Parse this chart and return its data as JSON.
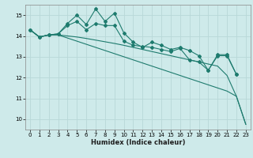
{
  "xlabel": "Humidex (Indice chaleur)",
  "bg_color": "#ceeaea",
  "grid_color": "#b8d8d8",
  "line_color": "#1e7b6e",
  "xlim": [
    -0.5,
    23.5
  ],
  "ylim": [
    9.5,
    15.5
  ],
  "xticks": [
    0,
    1,
    2,
    3,
    4,
    5,
    6,
    7,
    8,
    9,
    10,
    11,
    12,
    13,
    14,
    15,
    16,
    17,
    18,
    19,
    20,
    21,
    22,
    23
  ],
  "yticks": [
    10,
    11,
    12,
    13,
    14,
    15
  ],
  "lines": [
    {
      "x": [
        0,
        1,
        2,
        3,
        4,
        5,
        6,
        7,
        8,
        9,
        10,
        11,
        12,
        13,
        14,
        15,
        16,
        17,
        18,
        19,
        20,
        21,
        22
      ],
      "y": [
        14.3,
        13.95,
        14.05,
        14.1,
        14.6,
        15.0,
        14.55,
        15.3,
        14.7,
        15.1,
        14.15,
        13.7,
        13.45,
        13.7,
        13.55,
        13.35,
        13.45,
        13.3,
        13.05,
        12.35,
        13.1,
        13.1,
        12.15
      ],
      "marker": true
    },
    {
      "x": [
        0,
        1,
        2,
        3,
        4,
        5,
        6,
        7,
        8,
        9,
        10,
        11,
        12,
        13,
        14,
        15,
        16,
        17,
        18,
        19,
        20,
        21,
        22
      ],
      "y": [
        14.3,
        13.95,
        14.05,
        14.1,
        14.5,
        14.7,
        14.3,
        14.6,
        14.5,
        14.5,
        13.75,
        13.55,
        13.5,
        13.45,
        13.35,
        13.25,
        13.4,
        12.85,
        12.75,
        12.35,
        13.05,
        13.05,
        12.15
      ],
      "marker": true
    },
    {
      "x": [
        0,
        1,
        2,
        3,
        4,
        5,
        6,
        7,
        8,
        9,
        10,
        11,
        12,
        13,
        14,
        15,
        16,
        17,
        18,
        19,
        20,
        21,
        22,
        23
      ],
      "y": [
        14.3,
        13.95,
        14.05,
        14.05,
        14.0,
        13.95,
        13.88,
        13.8,
        13.72,
        13.64,
        13.55,
        13.45,
        13.35,
        13.25,
        13.15,
        13.05,
        12.95,
        12.85,
        12.75,
        12.65,
        12.55,
        12.1,
        11.1,
        9.75
      ],
      "marker": false
    },
    {
      "x": [
        0,
        1,
        2,
        3,
        4,
        5,
        6,
        7,
        8,
        9,
        10,
        11,
        12,
        13,
        14,
        15,
        16,
        17,
        18,
        19,
        20,
        21,
        22,
        23
      ],
      "y": [
        14.3,
        13.95,
        14.05,
        14.05,
        13.9,
        13.75,
        13.6,
        13.45,
        13.3,
        13.15,
        13.0,
        12.85,
        12.7,
        12.55,
        12.4,
        12.25,
        12.1,
        11.95,
        11.8,
        11.65,
        11.5,
        11.35,
        11.1,
        9.75
      ],
      "marker": false
    }
  ]
}
